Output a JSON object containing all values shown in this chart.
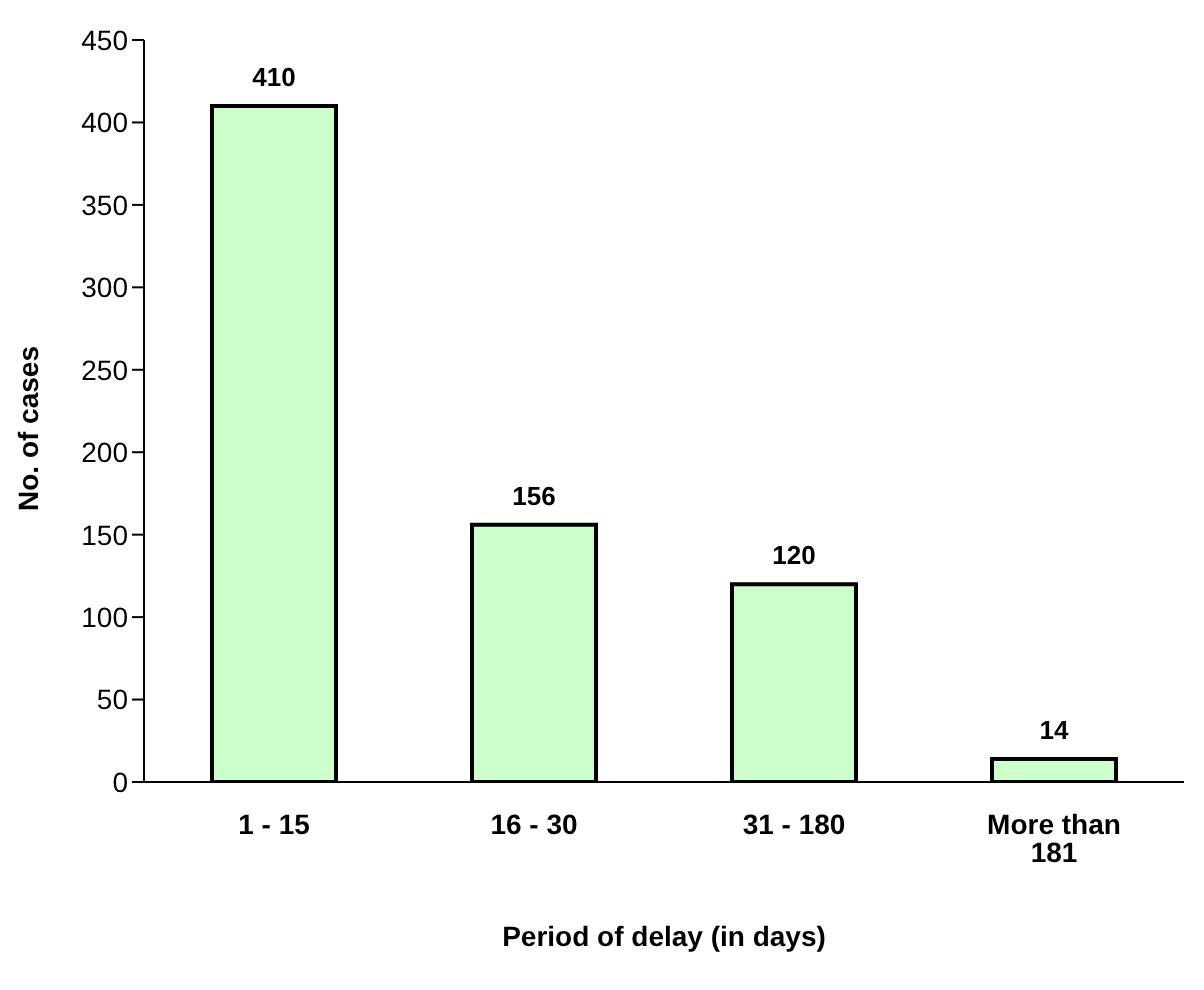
{
  "chart_data": {
    "type": "bar",
    "xlabel": "Period of delay (in days)",
    "ylabel": "No. of cases",
    "categories": [
      "1 - 15",
      "16 - 30",
      "31 - 180",
      "More than 181"
    ],
    "values": [
      410,
      156,
      120,
      14
    ],
    "color": "#ccffcc",
    "ylim": [
      0,
      450
    ],
    "yticks": [
      0,
      50,
      100,
      150,
      200,
      250,
      300,
      350,
      400,
      450
    ],
    "grid": false,
    "data_labels": true
  }
}
